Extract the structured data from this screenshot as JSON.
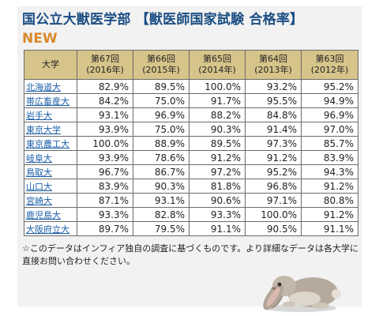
{
  "header": {
    "title_main": "国公立大獣医学部",
    "title_sub": "【獣医師国家試験 合格率】",
    "badge": "NEW"
  },
  "table": {
    "columns": [
      {
        "label": "大学"
      },
      {
        "line1": "第67回",
        "line2": "(2016年)"
      },
      {
        "line1": "第66回",
        "line2": "(2015年)"
      },
      {
        "line1": "第65回",
        "line2": "(2014年)"
      },
      {
        "line1": "第64回",
        "line2": "(2013年)"
      },
      {
        "line1": "第63回",
        "line2": "(2012年)"
      }
    ],
    "rows": [
      {
        "name": "北海道大",
        "values": [
          "82.9%",
          "89.5%",
          "100.0%",
          "93.2%",
          "95.2%"
        ]
      },
      {
        "name": "帯広畜産大",
        "values": [
          "84.2%",
          "75.0%",
          "91.7%",
          "95.5%",
          "94.9%"
        ]
      },
      {
        "name": "岩手大",
        "values": [
          "93.1%",
          "96.9%",
          "88.2%",
          "84.8%",
          "96.9%"
        ]
      },
      {
        "name": "東京大学",
        "values": [
          "93.9%",
          "75.0%",
          "90.3%",
          "91.4%",
          "97.0%"
        ]
      },
      {
        "name": "東京農工大",
        "values": [
          "100.0%",
          "88.9%",
          "89.5%",
          "97.3%",
          "85.7%"
        ]
      },
      {
        "name": "岐阜大",
        "values": [
          "93.9%",
          "78.6%",
          "91.2%",
          "91.2%",
          "83.9%"
        ]
      },
      {
        "name": "鳥取大",
        "values": [
          "96.7%",
          "86.7%",
          "97.2%",
          "95.2%",
          "94.3%"
        ]
      },
      {
        "name": "山口大",
        "values": [
          "83.9%",
          "90.3%",
          "81.8%",
          "96.8%",
          "91.2%"
        ]
      },
      {
        "name": "宮崎大",
        "values": [
          "87.1%",
          "93.1%",
          "90.6%",
          "97.1%",
          "80.8%"
        ]
      },
      {
        "name": "鹿児島大",
        "values": [
          "93.3%",
          "82.8%",
          "93.3%",
          "100.0%",
          "91.2%"
        ]
      },
      {
        "name": "大阪府立大",
        "values": [
          "89.7%",
          "79.5%",
          "91.1%",
          "90.5%",
          "91.1%"
        ]
      }
    ]
  },
  "footnote": "☆このデータはインフィア独自の調査に基づくものです。より詳細なデータは各大学に直接お問い合わせください。",
  "colors": {
    "title": "#1c4f84",
    "badge": "#d9882a",
    "header_bg": "#d6c48a",
    "link": "#1a5ea8",
    "panel_bg": "#f2f2f2"
  },
  "icons": {
    "illustration": "rabbit"
  }
}
